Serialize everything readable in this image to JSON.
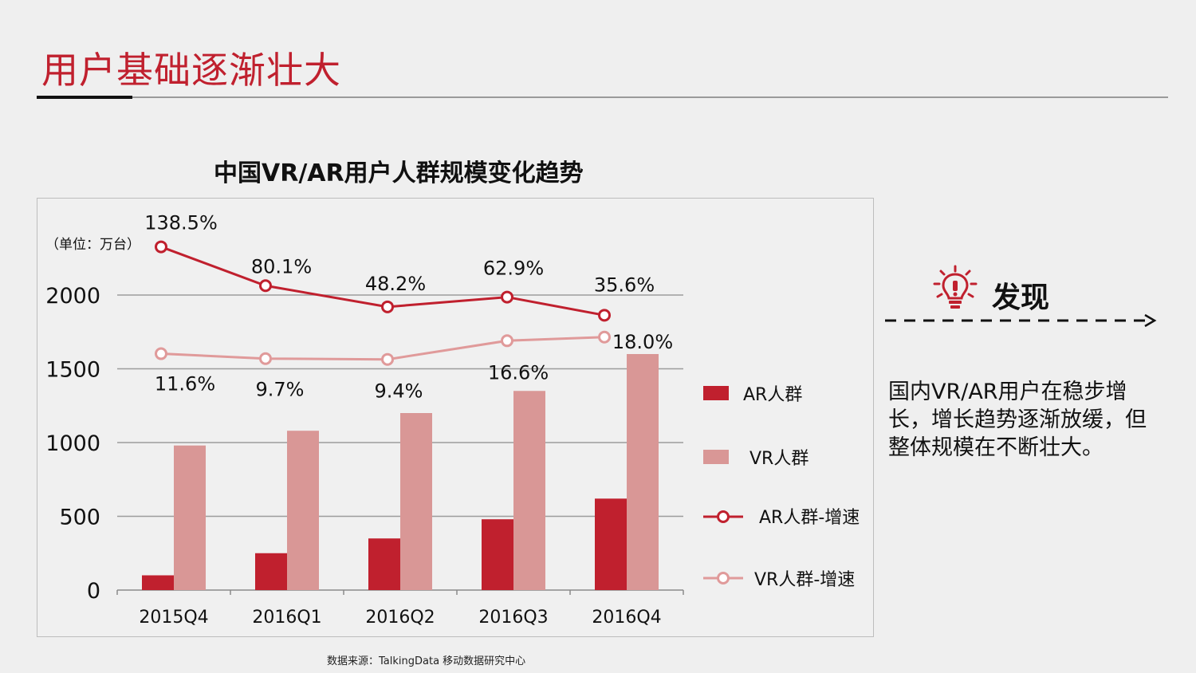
{
  "page": {
    "title": "用户基础逐渐壮大",
    "source": "数据来源：TalkingData 移动数据研究中心"
  },
  "finding": {
    "label": "发现",
    "icon": "lightbulb-icon",
    "text": "国内VR/AR用户在稳步增长，增长趋势逐渐放缓，但整体规模在不断壮大。"
  },
  "colors": {
    "accent": "#c0202e",
    "ar_bar": "#c0202e",
    "vr_bar": "#d99796",
    "vr_line": "#e09a9a"
  },
  "chart_data": {
    "type": "bar",
    "title": "中国VR/AR用户人群规模变化趋势",
    "unit_label": "（单位：万台）",
    "categories": [
      "2015Q4",
      "2016Q1",
      "2016Q2",
      "2016Q3",
      "2016Q4"
    ],
    "ylim": [
      0,
      2000
    ],
    "yticks": [
      0,
      500,
      1000,
      1500,
      2000
    ],
    "grid": true,
    "legend_position": "right",
    "series": [
      {
        "name": "AR人群",
        "kind": "bar",
        "values": [
          100,
          250,
          350,
          480,
          620
        ]
      },
      {
        "name": "VR人群",
        "kind": "bar",
        "values": [
          980,
          1080,
          1200,
          1350,
          1600
        ]
      },
      {
        "name": "AR人群-增速",
        "kind": "line",
        "values": [
          138.5,
          80.1,
          48.2,
          62.9,
          35.6
        ],
        "labels": [
          "138.5%",
          "80.1%",
          "48.2%",
          "62.9%",
          "35.6%"
        ]
      },
      {
        "name": "VR人群-增速",
        "kind": "line",
        "values": [
          11.6,
          9.7,
          9.4,
          16.6,
          18.0
        ],
        "labels": [
          "11.6%",
          "9.7%",
          "9.4%",
          "16.6%",
          "18.0%"
        ]
      }
    ]
  }
}
